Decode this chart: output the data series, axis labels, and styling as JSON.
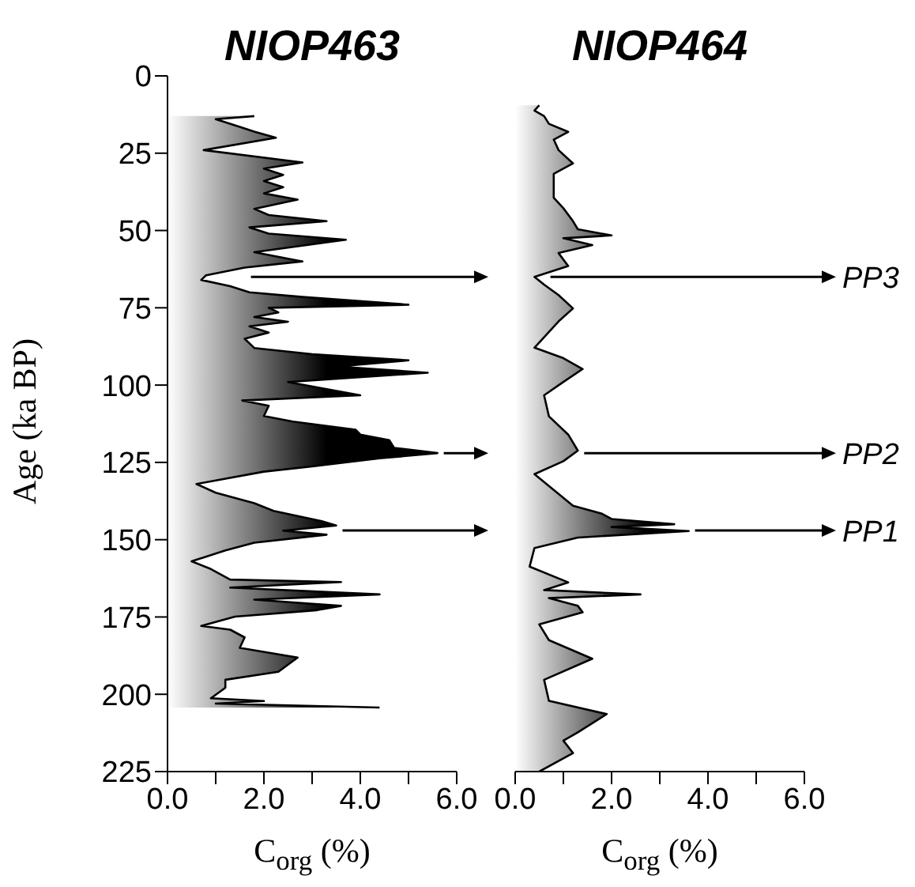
{
  "chart_data": [
    {
      "type": "area",
      "title": "NIOP463",
      "xlabel": "C$_{org}$ (%)",
      "ylabel": "Age (ka BP)",
      "orientation": "horizontal",
      "xlim": [
        0,
        6
      ],
      "xticks": [
        {
          "value": 0,
          "label": "0.0"
        },
        {
          "value": 1,
          "label": null
        },
        {
          "value": 2,
          "label": "2.0"
        },
        {
          "value": 3,
          "label": null
        },
        {
          "value": 4,
          "label": "4.0"
        },
        {
          "value": 5,
          "label": null
        },
        {
          "value": 6,
          "label": "6.0"
        }
      ],
      "ylim": [
        225,
        0
      ],
      "yticks": [
        0,
        25,
        50,
        75,
        100,
        125,
        150,
        175,
        200,
        225
      ],
      "grid": false,
      "ref_lines": [
        {
          "axis": "y",
          "value": 65
        },
        {
          "axis": "y",
          "value": 147
        }
      ],
      "series": [
        {
          "color": "#000000",
          "x": [
            13,
            14,
            16.5,
            18,
            20,
            24,
            28,
            30,
            32,
            34,
            36,
            38,
            40,
            43,
            45,
            47,
            49,
            51,
            53,
            57,
            60,
            62,
            64.5,
            66,
            68,
            70,
            71.5,
            74,
            75,
            76.5,
            78,
            79.5,
            81,
            83,
            85,
            88,
            90,
            92,
            94,
            96,
            99,
            103.3,
            105,
            106.7,
            110,
            111.8,
            114.4,
            116,
            117.8,
            120.3,
            122,
            123.7,
            126.3,
            128,
            132,
            134.8,
            138.2,
            140.7,
            144,
            145.4,
            147.1,
            148.4,
            151,
            153.5,
            157,
            159.5,
            162.9,
            163.7,
            165.5,
            167.7,
            169.4,
            171.4,
            172.8,
            174.9,
            177.9,
            179.1,
            181.6,
            185,
            188.1,
            192.7,
            195.3,
            197.9,
            201.3,
            202.2,
            203,
            204.3
          ],
          "values": [
            1.8,
            1.0,
            1.5,
            1.8,
            2.25,
            0.75,
            2.8,
            2.0,
            2.4,
            2.0,
            2.4,
            2.0,
            2.7,
            1.8,
            2.1,
            3.3,
            1.7,
            2.1,
            3.7,
            1.8,
            2.8,
            1.6,
            0.8,
            0.7,
            1.3,
            1.7,
            2.8,
            5.0,
            2.1,
            2.3,
            1.8,
            2.5,
            1.7,
            2.1,
            1.6,
            1.8,
            3.0,
            5.0,
            3.5,
            5.4,
            2.5,
            4.0,
            1.55,
            2.1,
            2.0,
            2.6,
            3.9,
            4.0,
            4.6,
            4.7,
            5.6,
            4.4,
            3.0,
            2.0,
            0.6,
            1.0,
            1.8,
            2.2,
            3.2,
            3.5,
            2.4,
            3.3,
            1.8,
            1.2,
            0.5,
            0.9,
            1.3,
            3.6,
            1.3,
            4.4,
            1.8,
            3.6,
            3.1,
            1.4,
            0.7,
            1.3,
            1.6,
            1.5,
            2.7,
            2.3,
            1.2,
            1.2,
            0.9,
            2.0,
            1.0,
            4.4
          ]
        }
      ]
    },
    {
      "type": "area",
      "title": "NIOP464",
      "xlabel": "C$_{org}$ (%)",
      "orientation": "horizontal",
      "tick_labels": "x",
      "xlim": [
        0,
        6
      ],
      "xticks": [
        {
          "value": 0,
          "label": "0.0"
        },
        {
          "value": 1,
          "label": null
        },
        {
          "value": 2,
          "label": "2.0"
        },
        {
          "value": 3,
          "label": null
        },
        {
          "value": 4,
          "label": "4.0"
        },
        {
          "value": 5,
          "label": null
        },
        {
          "value": 6,
          "label": "6.0"
        }
      ],
      "ylim": [
        225,
        0
      ],
      "yticks": [
        0,
        25,
        50,
        75,
        100,
        125,
        150,
        175,
        200,
        225
      ],
      "grid": false,
      "ref_lines": [
        {
          "axis": "y",
          "value": 65,
          "label": "PP3"
        },
        {
          "axis": "y",
          "value": 122,
          "label": "PP2"
        },
        {
          "axis": "y",
          "value": 147,
          "label": "PP1"
        }
      ],
      "series": [
        {
          "color": "#000000",
          "x": [
            9.5,
            11.2,
            13,
            15.5,
            18.1,
            20.6,
            24,
            28.3,
            31.7,
            39.4,
            42.8,
            47,
            49.6,
            51.6,
            52.5,
            54.7,
            57.3,
            61.5,
            65,
            67.5,
            70.9,
            75.2,
            79.4,
            87.9,
            91.3,
            94.8,
            99,
            103.3,
            110.1,
            116,
            121.2,
            124.6,
            128.8,
            133.9,
            139,
            141.6,
            143.3,
            145,
            145.9,
            147.2,
            149.3,
            152.7,
            158.7,
            163.8,
            166.3,
            167.7,
            168.9,
            171.4,
            173.5,
            177.4,
            182.5,
            188.5,
            195.3,
            202.1,
            206.4,
            212.3,
            215,
            219,
            225
          ],
          "values": [
            0.5,
            0.4,
            0.6,
            0.7,
            1.1,
            0.8,
            0.9,
            1.2,
            0.8,
            0.8,
            1.0,
            1.2,
            1.3,
            2.0,
            1.0,
            1.6,
            0.9,
            1.1,
            0.4,
            0.6,
            0.9,
            1.2,
            0.9,
            0.4,
            1.0,
            1.4,
            1.0,
            0.6,
            0.7,
            1.1,
            1.3,
            1.0,
            0.4,
            0.8,
            1.2,
            1.8,
            2.0,
            3.3,
            2.0,
            3.6,
            1.3,
            0.4,
            0.3,
            1.1,
            0.6,
            2.6,
            0.7,
            1.3,
            1.4,
            0.5,
            0.7,
            1.6,
            0.6,
            0.7,
            1.9,
            1.3,
            1.0,
            1.2,
            0.5
          ]
        }
      ]
    }
  ]
}
